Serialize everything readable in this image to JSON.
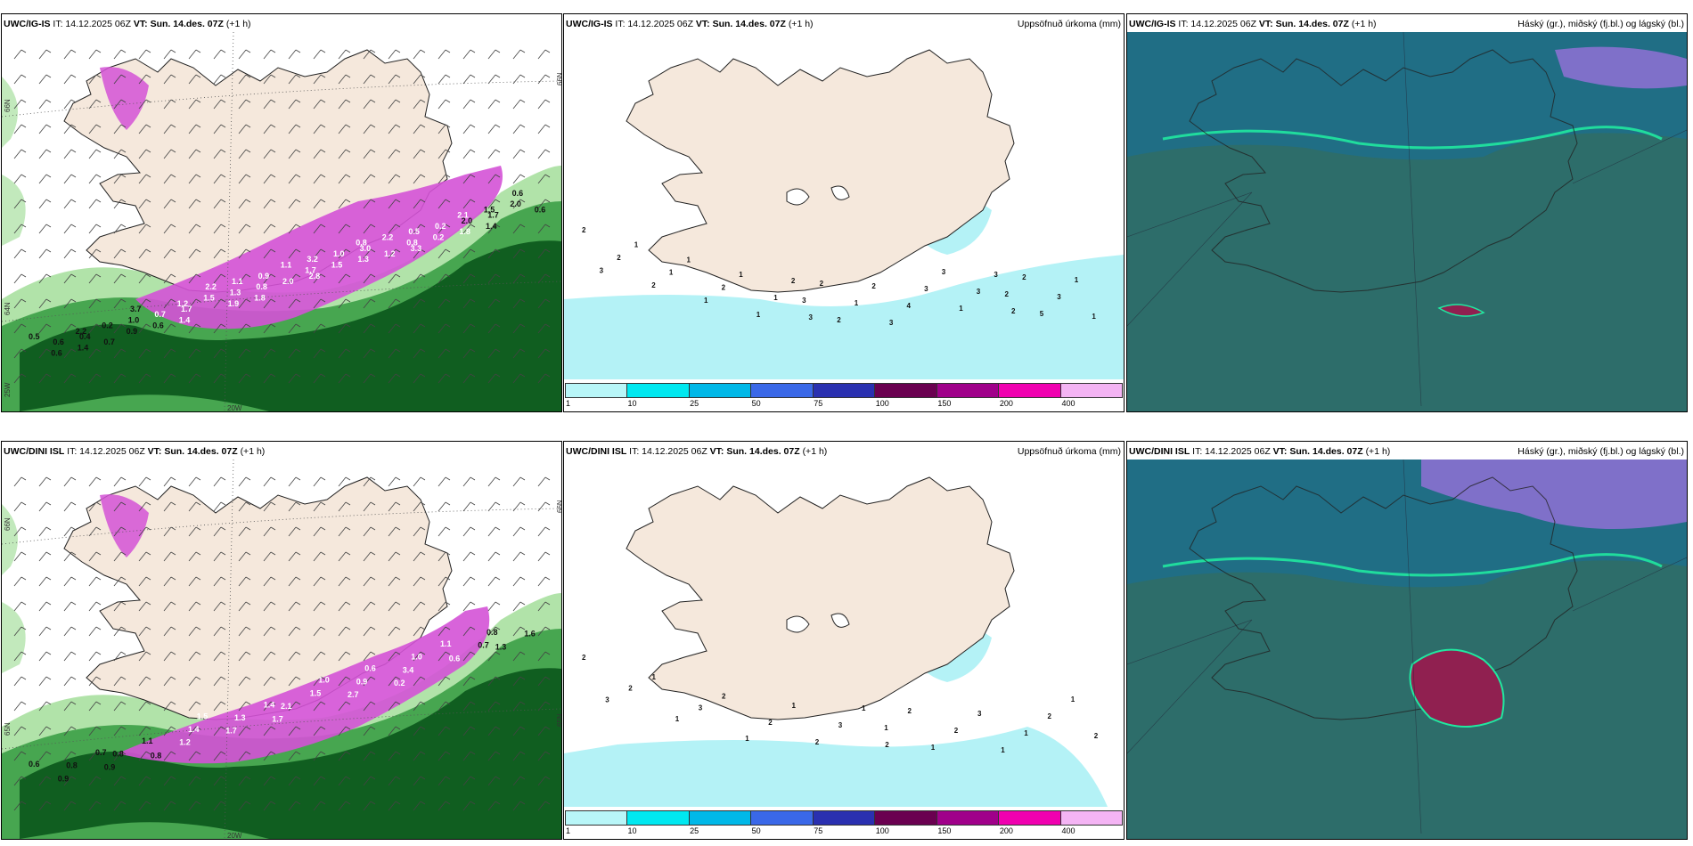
{
  "panels": [
    {
      "id": "top-left",
      "model": "UWC/IG-IS",
      "issue": "IT: 14.12.2025 06Z",
      "vt_label": "VT:",
      "valid": "Sun. 14.des. 07Z",
      "lead": "(+1 h)",
      "right_title": "",
      "grid_labels": {
        "lat66": "66N",
        "lat65": "65N",
        "lat64": "64N",
        "lon20": "20W",
        "lon25": "25W"
      },
      "value_labels": [
        "0.5",
        "0.6",
        "0.6",
        "2.2",
        "1.4",
        "0.4",
        "0.2",
        "0.7",
        "0.9",
        "1.0",
        "3.7",
        "0.6",
        "0.7",
        "1.2",
        "1.4",
        "1.7",
        "1.5",
        "2.2",
        "1.9",
        "1.3",
        "1.1",
        "1.8",
        "0.8",
        "0.9",
        "1.1",
        "2.0",
        "1.7",
        "3.2",
        "2.8",
        "1.5",
        "1.0",
        "0.8",
        "1.3",
        "3.0",
        "2.2",
        "1.2",
        "0.8",
        "0.5",
        "3.3",
        "0.2",
        "0.2",
        "2.1",
        "1.8",
        "2.0",
        "1.5",
        "1.4",
        "1.7",
        "2.0",
        "0.6",
        "0.6"
      ]
    },
    {
      "id": "top-middle",
      "model": "UWC/IG-IS",
      "issue": "IT: 14.12.2025 06Z",
      "vt_label": "VT:",
      "valid": "Sun. 14.des. 07Z",
      "lead": "(+1 h)",
      "right_title": "Uppsöfnuð úrkoma (mm)",
      "value_labels": [
        "2",
        "3",
        "2",
        "1",
        "2",
        "1",
        "1",
        "1",
        "2",
        "1",
        "1",
        "1",
        "2",
        "3",
        "3",
        "2",
        "2",
        "1",
        "2",
        "3",
        "4",
        "3",
        "3",
        "1",
        "3",
        "3",
        "2",
        "2",
        "2",
        "5",
        "3",
        "1",
        "1"
      ]
    },
    {
      "id": "top-right",
      "model": "UWC/IG-IS",
      "issue": "IT: 14.12.2025 06Z",
      "vt_label": "VT:",
      "valid": "Sun. 14.des. 07Z",
      "lead": "(+1 h)",
      "right_title": "Háský (gr.), miðský (fj.bl.) og lágský (bl.)"
    },
    {
      "id": "bottom-left",
      "model": "UWC/DINI ISL",
      "issue": "IT: 14.12.2025 06Z",
      "vt_label": "VT:",
      "valid": "Sun. 14.des. 07Z",
      "lead": "(+1 h)",
      "right_title": "",
      "grid_labels": {
        "lat66": "66N",
        "lat65": "65N",
        "lat64": "64N",
        "lon20": "20W",
        "lon25": "25W"
      },
      "value_labels": [
        "0.6",
        "0.9",
        "0.8",
        "0.7",
        "0.9",
        "0.8",
        "1.1",
        "0.8",
        "1.2",
        "1.4",
        "1.5",
        "1.7",
        "1.3",
        "1.4",
        "1.7",
        "2.1",
        "1.5",
        "1.0",
        "2.7",
        "0.9",
        "0.6",
        "0.2",
        "3.4",
        "1.0",
        "1.1",
        "0.6",
        "0.7",
        "0.8",
        "1.3",
        "1.6"
      ]
    },
    {
      "id": "bottom-middle",
      "model": "UWC/DINI ISL",
      "issue": "IT: 14.12.2025 06Z",
      "vt_label": "VT:",
      "valid": "Sun. 14.des. 07Z",
      "lead": "(+1 h)",
      "right_title": "Uppsöfnuð úrkoma (mm)",
      "value_labels": [
        "2",
        "3",
        "2",
        "1",
        "1",
        "3",
        "2",
        "1",
        "2",
        "1",
        "2",
        "3",
        "1",
        "2",
        "1",
        "2",
        "1",
        "2",
        "3",
        "1",
        "1",
        "2",
        "1",
        "2"
      ]
    },
    {
      "id": "bottom-right",
      "model": "UWC/DINI ISL",
      "issue": "IT: 14.12.2025 06Z",
      "vt_label": "VT:",
      "valid": "Sun. 14.des. 07Z",
      "lead": "(+1 h)",
      "right_title": "Háský (gr.), miðský (fj.bl.) og lágský (bl.)"
    }
  ],
  "precip_legend": {
    "ticks": [
      "1",
      "10",
      "25",
      "50",
      "75",
      "100",
      "150",
      "200",
      "400"
    ],
    "colors": [
      "#b8f6f8",
      "#00e8f0",
      "#00b8e8",
      "#3a68e8",
      "#2a30b0",
      "#6a0050",
      "#a0008a",
      "#f000b0",
      "#f4b4f4"
    ]
  },
  "colors": {
    "land": "#f5e8dc",
    "precip_light": "#b4f2f6",
    "rain_dark_green": "#0e5a1e",
    "rain_mid_green": "#3c9e46",
    "rain_light_green": "#a8e0a0",
    "snow_magenta": "#d452d6",
    "cloud_teal": "#2d6d6a",
    "cloud_blue": "#1e6e8a",
    "cloud_purple": "#8a70d0",
    "cloud_highlight": "#20e8a0",
    "cloud_red": "#902050"
  }
}
